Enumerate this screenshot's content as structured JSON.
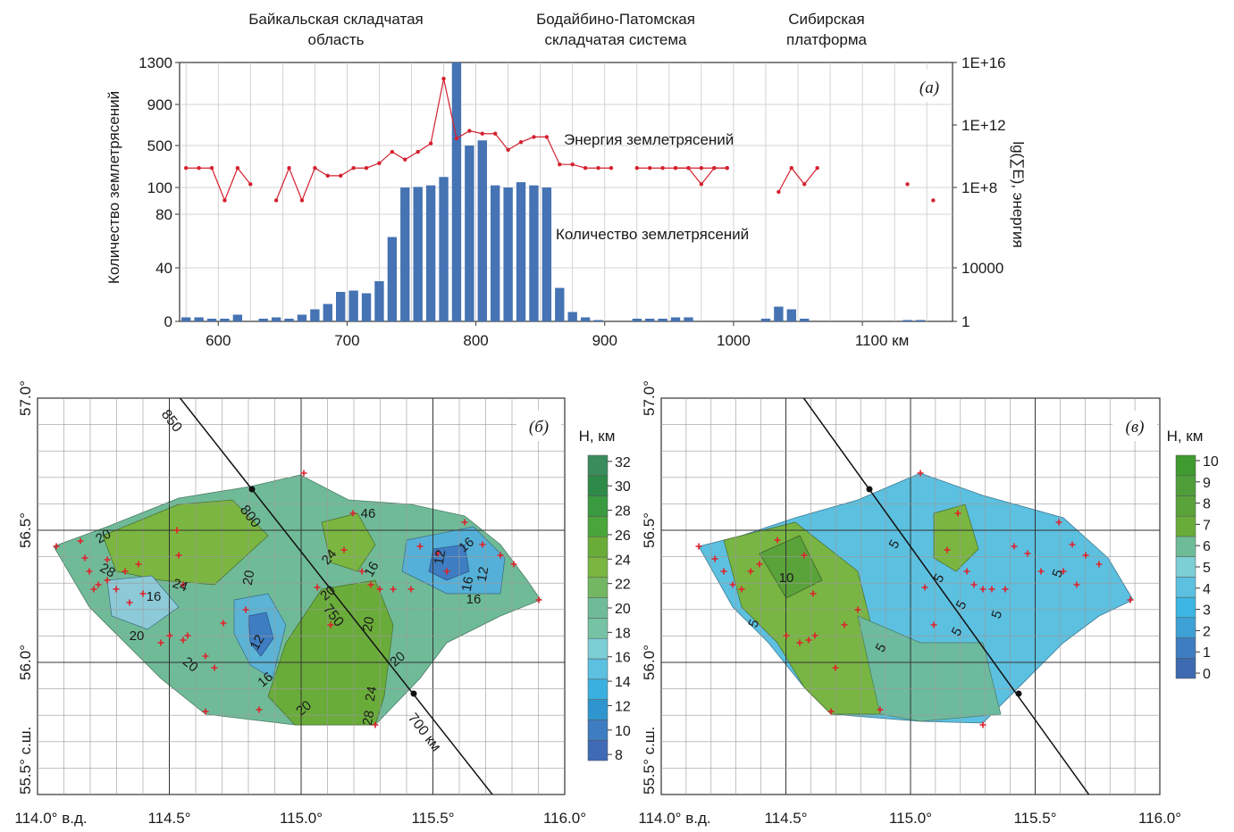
{
  "colors": {
    "bar": "#4573b3",
    "energy_line": "#d4202f",
    "grid": "#c8c8c8",
    "profile_line": "#1a1a1a",
    "epicenter": "#e0202a"
  },
  "chart_data": [
    {
      "id": "a",
      "type": "bar",
      "panel_label": "(a)",
      "regions": [
        "Байкальская складчатая область",
        "Бодайбино-Патомская складчатая система",
        "Сибирская платформа"
      ],
      "xlabel": "",
      "x_unit": "км",
      "xlim": [
        570,
        1170
      ],
      "x_ticks": [
        600,
        700,
        800,
        900,
        1000,
        1100
      ],
      "ylabel": "Количество землетрясений",
      "y_ticks": [
        "0",
        "40",
        "80",
        "100",
        "500",
        "900",
        "1300"
      ],
      "y2label": "lg(∑E), энергия",
      "y2_ticks": [
        "1",
        "10000",
        "1E+8",
        "1E+12",
        "1E+16"
      ],
      "grid": true,
      "series": [
        {
          "name": "Количество землетрясений",
          "type": "bar",
          "x": [
            575,
            585,
            595,
            605,
            615,
            625,
            635,
            645,
            655,
            665,
            675,
            685,
            695,
            705,
            715,
            725,
            735,
            745,
            755,
            765,
            775,
            785,
            795,
            805,
            815,
            825,
            835,
            845,
            855,
            865,
            875,
            885,
            895,
            925,
            935,
            945,
            955,
            965,
            1025,
            1035,
            1045,
            1055,
            1135,
            1145
          ],
          "values": [
            3,
            3,
            2,
            2,
            5,
            0,
            2,
            3,
            2,
            5,
            9,
            13,
            22,
            23,
            21,
            30,
            63,
            100,
            105,
            120,
            200,
            1300,
            500,
            550,
            120,
            100,
            150,
            120,
            100,
            25,
            7,
            3,
            1,
            2,
            2,
            2,
            3,
            3,
            2,
            11,
            9,
            2,
            1,
            1
          ]
        },
        {
          "name": "Энергия землетрясений",
          "type": "line",
          "y_axis": "right",
          "segments": [
            {
              "x": [
                575,
                585,
                595,
                605,
                615,
                625
              ],
              "y": [
                3000000000.0,
                3000000000.0,
                3000000000.0,
                30000000.0,
                3000000000.0,
                300000000.0
              ]
            },
            {
              "x": [
                645,
                655,
                665,
                675,
                685,
                695,
                705,
                715,
                725,
                735,
                745,
                755,
                765,
                775,
                785,
                795,
                805,
                815,
                825,
                835,
                845,
                855,
                865,
                875,
                885,
                895,
                905
              ],
              "y": [
                30000000.0,
                3000000000.0,
                30000000.0,
                3000000000.0,
                1000000000.0,
                1000000000.0,
                3000000000.0,
                3000000000.0,
                6000000000.0,
                30000000000.0,
                10000000000.0,
                30000000000.0,
                100000000000.0,
                1000000000000000.0,
                200000000000.0,
                600000000000.0,
                400000000000.0,
                400000000000.0,
                40000000000.0,
                120000000000.0,
                250000000000.0,
                250000000000.0,
                5000000000.0,
                5000000000.0,
                3000000000.0,
                3000000000.0,
                3000000000.0
              ]
            },
            {
              "x": [
                925,
                935,
                945,
                955,
                965,
                975,
                985,
                995
              ],
              "y": [
                3000000000.0,
                3000000000.0,
                3000000000.0,
                3000000000.0,
                3000000000.0,
                3000000000.0,
                3000000000.0,
                3000000000.0
              ]
            },
            {
              "x": [
                955,
                965,
                975,
                985,
                995
              ],
              "y": [
                3000000000.0,
                3000000000.0,
                300000000.0,
                3000000000.0,
                3000000000.0
              ]
            },
            {
              "x": [
                1035,
                1045,
                1055,
                1065
              ],
              "y": [
                100000000.0,
                3000000000.0,
                300000000.0,
                3000000000.0
              ]
            },
            {
              "x": [
                1135
              ],
              "y": [
                300000000.0
              ]
            },
            {
              "x": [
                1155
              ],
              "y": [
                30000000.0
              ]
            }
          ]
        }
      ]
    },
    {
      "id": "b",
      "type": "heatmap",
      "panel_label": "(б)",
      "colorbar_title": "Н, км",
      "colorbar_ticks": [
        "8",
        "10",
        "12",
        "14",
        "16",
        "18",
        "20",
        "22",
        "24",
        "26",
        "28",
        "30",
        "32"
      ],
      "x_ticks": [
        "114.0° в.д.",
        "114.5°",
        "115.0°",
        "115.5°",
        "116.0°"
      ],
      "y_ticks": [
        "55.5° с.ш.",
        "56.0°",
        "56.5°",
        "57.0°"
      ],
      "profile_labels": [
        "850",
        "800",
        "750",
        "700 км"
      ],
      "contour_labels": [
        "20",
        "28",
        "24",
        "16",
        "20",
        "20",
        "12",
        "16",
        "20",
        "24",
        "24",
        "28",
        "20",
        "20",
        "16",
        "12",
        "16",
        "12",
        "16",
        "16",
        "46",
        "20",
        "20"
      ]
    },
    {
      "id": "c",
      "type": "heatmap",
      "panel_label": "(в)",
      "colorbar_title": "Н, км",
      "colorbar_ticks": [
        "0",
        "1",
        "2",
        "3",
        "4",
        "5",
        "6",
        "7",
        "8",
        "9",
        "10"
      ],
      "x_ticks": [
        "114.0° в.д.",
        "114.5°",
        "115.0°",
        "115.5°",
        "116.0°"
      ],
      "y_ticks": [
        "55.5° с.ш.",
        "56.0°",
        "56.5°",
        "57.0°"
      ],
      "contour_labels": [
        "10",
        "5",
        "5",
        "5",
        "5",
        "5",
        "5",
        "5",
        "5"
      ]
    }
  ]
}
